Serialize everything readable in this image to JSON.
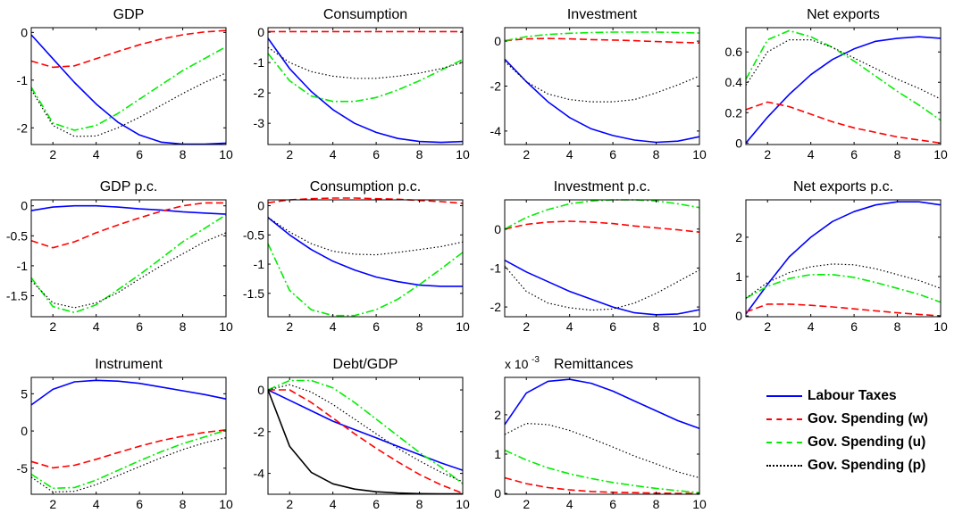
{
  "figure": {
    "series_styles": {
      "labour": {
        "color": "#0000ff",
        "dash": "",
        "width": 1.6
      },
      "govw": {
        "color": "#ff0000",
        "dash": "8,4",
        "width": 1.6
      },
      "govu": {
        "color": "#00ee00",
        "dash": "9,3,2,3",
        "width": 1.6
      },
      "govp": {
        "color": "#000000",
        "dash": "1.5,2.5",
        "width": 1.2
      },
      "black": {
        "color": "#000000",
        "dash": "",
        "width": 1.6
      }
    }
  },
  "legend": {
    "entries": [
      {
        "key": "labour",
        "label": "Labour Taxes"
      },
      {
        "key": "govw",
        "label": "Gov. Spending (w)"
      },
      {
        "key": "govu",
        "label": "Gov. Spending (u)"
      },
      {
        "key": "govp",
        "label": "Gov. Spending (p)"
      }
    ]
  },
  "chart_data": [
    {
      "type": "line",
      "title": "GDP",
      "x": [
        1,
        2,
        3,
        4,
        5,
        6,
        7,
        8,
        9,
        10
      ],
      "xlim": [
        1,
        10
      ],
      "ylim": [
        -2.35,
        0.1
      ],
      "yticks": [
        0,
        -1,
        -2
      ],
      "xticks": [
        2,
        4,
        6,
        8,
        10
      ],
      "series": [
        {
          "key": "labour",
          "values": [
            -0.05,
            -0.55,
            -1.05,
            -1.5,
            -1.88,
            -2.15,
            -2.3,
            -2.34,
            -2.34,
            -2.32
          ]
        },
        {
          "key": "govw",
          "values": [
            -0.6,
            -0.73,
            -0.7,
            -0.55,
            -0.4,
            -0.26,
            -0.14,
            -0.05,
            0.01,
            0.04
          ]
        },
        {
          "key": "govu",
          "values": [
            -1.15,
            -1.9,
            -2.05,
            -1.95,
            -1.7,
            -1.4,
            -1.1,
            -0.8,
            -0.55,
            -0.3
          ]
        },
        {
          "key": "govp",
          "values": [
            -1.2,
            -1.95,
            -2.18,
            -2.17,
            -2.0,
            -1.78,
            -1.53,
            -1.28,
            -1.05,
            -0.85
          ]
        }
      ]
    },
    {
      "type": "line",
      "title": "Consumption",
      "x": [
        1,
        2,
        3,
        4,
        5,
        6,
        7,
        8,
        9,
        10
      ],
      "xlim": [
        1,
        10
      ],
      "ylim": [
        -3.7,
        0.15
      ],
      "yticks": [
        0,
        -1,
        -2,
        -3
      ],
      "xticks": [
        2,
        4,
        6,
        8,
        10
      ],
      "series": [
        {
          "key": "labour",
          "values": [
            -0.2,
            -1.2,
            -1.95,
            -2.55,
            -3.0,
            -3.3,
            -3.5,
            -3.6,
            -3.63,
            -3.6
          ]
        },
        {
          "key": "govw",
          "values": [
            0.02,
            0.02,
            0.02,
            0.02,
            0.02,
            0.02,
            0.02,
            0.02,
            0.02,
            0.02
          ]
        },
        {
          "key": "govu",
          "values": [
            -0.7,
            -1.6,
            -2.1,
            -2.28,
            -2.28,
            -2.15,
            -1.9,
            -1.6,
            -1.25,
            -0.9
          ]
        },
        {
          "key": "govp",
          "values": [
            -0.5,
            -1.0,
            -1.3,
            -1.45,
            -1.52,
            -1.52,
            -1.45,
            -1.35,
            -1.2,
            -1.0
          ]
        }
      ]
    },
    {
      "type": "line",
      "title": "Investment",
      "x": [
        1,
        2,
        3,
        4,
        5,
        6,
        7,
        8,
        9,
        10
      ],
      "xlim": [
        1,
        10
      ],
      "ylim": [
        -4.6,
        0.6
      ],
      "yticks": [
        0,
        -2,
        -4
      ],
      "xticks": [
        2,
        4,
        6,
        8,
        10
      ],
      "series": [
        {
          "key": "labour",
          "values": [
            -0.8,
            -1.8,
            -2.7,
            -3.4,
            -3.9,
            -4.2,
            -4.4,
            -4.5,
            -4.45,
            -4.25
          ]
        },
        {
          "key": "govw",
          "values": [
            0.02,
            0.1,
            0.12,
            0.1,
            0.07,
            0.05,
            0.02,
            -0.02,
            -0.05,
            -0.08
          ]
        },
        {
          "key": "govu",
          "values": [
            0.02,
            0.2,
            0.3,
            0.35,
            0.38,
            0.4,
            0.4,
            0.4,
            0.38,
            0.36
          ]
        },
        {
          "key": "govp",
          "values": [
            -0.9,
            -1.8,
            -2.35,
            -2.6,
            -2.7,
            -2.7,
            -2.6,
            -2.3,
            -1.95,
            -1.55
          ]
        }
      ]
    },
    {
      "type": "line",
      "title": "Net exports",
      "x": [
        1,
        2,
        3,
        4,
        5,
        6,
        7,
        8,
        9,
        10
      ],
      "xlim": [
        1,
        10
      ],
      "ylim": [
        -0.01,
        0.76
      ],
      "yticks": [
        0,
        0.2,
        0.4,
        0.6
      ],
      "xticks": [
        2,
        4,
        6,
        8,
        10
      ],
      "series": [
        {
          "key": "labour",
          "values": [
            0.0,
            0.17,
            0.32,
            0.45,
            0.55,
            0.62,
            0.67,
            0.69,
            0.7,
            0.69
          ]
        },
        {
          "key": "govw",
          "values": [
            0.22,
            0.27,
            0.24,
            0.19,
            0.14,
            0.1,
            0.07,
            0.04,
            0.02,
            0.0
          ]
        },
        {
          "key": "govu",
          "values": [
            0.42,
            0.68,
            0.74,
            0.7,
            0.63,
            0.54,
            0.44,
            0.34,
            0.25,
            0.15
          ]
        },
        {
          "key": "govp",
          "values": [
            0.38,
            0.6,
            0.68,
            0.68,
            0.63,
            0.56,
            0.49,
            0.42,
            0.36,
            0.29
          ]
        }
      ]
    },
    {
      "type": "line",
      "title": "GDP p.c.",
      "x": [
        1,
        2,
        3,
        4,
        5,
        6,
        7,
        8,
        9,
        10
      ],
      "xlim": [
        1,
        10
      ],
      "ylim": [
        -1.85,
        0.1
      ],
      "yticks": [
        0,
        -0.5,
        -1,
        -1.5
      ],
      "xticks": [
        2,
        4,
        6,
        8,
        10
      ],
      "series": [
        {
          "key": "labour",
          "values": [
            -0.08,
            -0.02,
            0.0,
            0.0,
            -0.02,
            -0.05,
            -0.07,
            -0.1,
            -0.12,
            -0.14
          ]
        },
        {
          "key": "govw",
          "values": [
            -0.58,
            -0.7,
            -0.6,
            -0.45,
            -0.32,
            -0.2,
            -0.09,
            0.0,
            0.05,
            0.05
          ]
        },
        {
          "key": "govu",
          "values": [
            -1.2,
            -1.68,
            -1.78,
            -1.65,
            -1.4,
            -1.15,
            -0.88,
            -0.6,
            -0.38,
            -0.15
          ]
        },
        {
          "key": "govp",
          "values": [
            -1.25,
            -1.62,
            -1.7,
            -1.62,
            -1.45,
            -1.22,
            -1.0,
            -0.8,
            -0.6,
            -0.45
          ]
        }
      ]
    },
    {
      "type": "line",
      "title": "Consumption p.c.",
      "x": [
        1,
        2,
        3,
        4,
        5,
        6,
        7,
        8,
        9,
        10
      ],
      "xlim": [
        1,
        10
      ],
      "ylim": [
        -1.9,
        0.1
      ],
      "yticks": [
        0,
        -0.5,
        -1,
        -1.5
      ],
      "xticks": [
        2,
        4,
        6,
        8,
        10
      ],
      "series": [
        {
          "key": "labour",
          "values": [
            -0.2,
            -0.5,
            -0.75,
            -0.95,
            -1.1,
            -1.22,
            -1.3,
            -1.36,
            -1.38,
            -1.38
          ]
        },
        {
          "key": "govw",
          "values": [
            0.05,
            0.1,
            0.12,
            0.13,
            0.13,
            0.12,
            0.11,
            0.09,
            0.07,
            0.04
          ]
        },
        {
          "key": "govu",
          "values": [
            -0.65,
            -1.45,
            -1.78,
            -1.88,
            -1.88,
            -1.78,
            -1.6,
            -1.35,
            -1.08,
            -0.8
          ]
        },
        {
          "key": "govp",
          "values": [
            -0.2,
            -0.45,
            -0.65,
            -0.78,
            -0.83,
            -0.84,
            -0.8,
            -0.75,
            -0.7,
            -0.62
          ]
        }
      ]
    },
    {
      "type": "line",
      "title": "Investment p.c.",
      "x": [
        1,
        2,
        3,
        4,
        5,
        6,
        7,
        8,
        9,
        10
      ],
      "xlim": [
        1,
        10
      ],
      "ylim": [
        -2.25,
        0.75
      ],
      "yticks": [
        0,
        -1,
        -2
      ],
      "xticks": [
        2,
        4,
        6,
        8,
        10
      ],
      "series": [
        {
          "key": "labour",
          "values": [
            -0.8,
            -1.1,
            -1.35,
            -1.6,
            -1.8,
            -2.0,
            -2.15,
            -2.2,
            -2.18,
            -2.07
          ]
        },
        {
          "key": "govw",
          "values": [
            0.0,
            0.12,
            0.18,
            0.2,
            0.18,
            0.14,
            0.08,
            0.03,
            -0.02,
            -0.08
          ]
        },
        {
          "key": "govu",
          "values": [
            0.0,
            0.3,
            0.5,
            0.65,
            0.72,
            0.75,
            0.75,
            0.72,
            0.65,
            0.55
          ]
        },
        {
          "key": "govp",
          "values": [
            -0.95,
            -1.6,
            -1.9,
            -2.02,
            -2.08,
            -2.05,
            -1.9,
            -1.65,
            -1.35,
            -1.05
          ]
        }
      ]
    },
    {
      "type": "line",
      "title": "Net exports p.c.",
      "x": [
        1,
        2,
        3,
        4,
        5,
        6,
        7,
        8,
        9,
        10
      ],
      "xlim": [
        1,
        10
      ],
      "ylim": [
        -0.02,
        2.95
      ],
      "yticks": [
        0,
        1,
        2
      ],
      "xticks": [
        2,
        4,
        6,
        8,
        10
      ],
      "series": [
        {
          "key": "labour",
          "values": [
            0.05,
            0.8,
            1.5,
            2.0,
            2.4,
            2.65,
            2.82,
            2.9,
            2.9,
            2.82
          ]
        },
        {
          "key": "govw",
          "values": [
            0.1,
            0.3,
            0.3,
            0.27,
            0.23,
            0.18,
            0.13,
            0.08,
            0.04,
            0.0
          ]
        },
        {
          "key": "govu",
          "values": [
            0.45,
            0.75,
            0.95,
            1.05,
            1.05,
            0.98,
            0.85,
            0.7,
            0.55,
            0.35
          ]
        },
        {
          "key": "govp",
          "values": [
            0.45,
            0.85,
            1.1,
            1.25,
            1.32,
            1.3,
            1.2,
            1.05,
            0.9,
            0.7
          ]
        }
      ]
    },
    {
      "type": "line",
      "title": "Instrument",
      "x": [
        1,
        2,
        3,
        4,
        5,
        6,
        7,
        8,
        9,
        10
      ],
      "xlim": [
        1,
        10
      ],
      "ylim": [
        -8.5,
        7.2
      ],
      "yticks": [
        5,
        0,
        -5
      ],
      "xticks": [
        2,
        4,
        6,
        8,
        10
      ],
      "series": [
        {
          "key": "labour",
          "values": [
            3.5,
            5.6,
            6.6,
            6.8,
            6.7,
            6.4,
            5.9,
            5.4,
            4.9,
            4.3
          ]
        },
        {
          "key": "govw",
          "values": [
            -4.1,
            -4.95,
            -4.6,
            -3.8,
            -2.9,
            -2.05,
            -1.3,
            -0.7,
            -0.2,
            0.15
          ]
        },
        {
          "key": "govu",
          "values": [
            -5.8,
            -7.7,
            -7.6,
            -6.6,
            -5.3,
            -4.0,
            -2.8,
            -1.7,
            -0.8,
            0.1
          ]
        },
        {
          "key": "govp",
          "values": [
            -6.2,
            -8.2,
            -8.1,
            -7.2,
            -6.0,
            -4.8,
            -3.6,
            -2.5,
            -1.6,
            -0.9
          ]
        }
      ]
    },
    {
      "type": "line",
      "title": "Debt/GDP",
      "x": [
        1,
        2,
        3,
        4,
        5,
        6,
        7,
        8,
        9,
        10
      ],
      "xlim": [
        1,
        10
      ],
      "ylim": [
        -5.0,
        0.6
      ],
      "yticks": [
        0,
        -2,
        -4
      ],
      "xticks": [
        2,
        4,
        6,
        8,
        10
      ],
      "series": [
        {
          "key": "labour",
          "values": [
            0.0,
            -0.5,
            -1.0,
            -1.5,
            -1.9,
            -2.3,
            -2.7,
            -3.1,
            -3.5,
            -3.85
          ]
        },
        {
          "key": "govw",
          "values": [
            0.0,
            0.0,
            -0.6,
            -1.35,
            -2.1,
            -2.8,
            -3.45,
            -4.05,
            -4.55,
            -4.95
          ]
        },
        {
          "key": "govu",
          "values": [
            0.0,
            0.45,
            0.45,
            0.1,
            -0.6,
            -1.4,
            -2.2,
            -3.0,
            -3.7,
            -4.5
          ]
        },
        {
          "key": "govp",
          "values": [
            0.0,
            0.25,
            -0.1,
            -0.7,
            -1.4,
            -2.1,
            -2.8,
            -3.4,
            -3.95,
            -4.4
          ]
        },
        {
          "key": "black",
          "values": [
            0.0,
            -2.7,
            -3.95,
            -4.5,
            -4.75,
            -4.88,
            -4.94,
            -4.97,
            -4.98,
            -4.98
          ]
        }
      ]
    },
    {
      "type": "line",
      "title": "Remittances",
      "exponent_label": "x 10",
      "exponent": "-3",
      "x": [
        1,
        2,
        3,
        4,
        5,
        6,
        7,
        8,
        9,
        10
      ],
      "xlim": [
        1,
        10
      ],
      "ylim": [
        -0.02,
        2.95
      ],
      "yticks": [
        0,
        1,
        2
      ],
      "xticks": [
        2,
        4,
        6,
        8,
        10
      ],
      "series": [
        {
          "key": "labour",
          "values": [
            1.75,
            2.55,
            2.85,
            2.9,
            2.8,
            2.6,
            2.35,
            2.1,
            1.85,
            1.65
          ]
        },
        {
          "key": "govw",
          "values": [
            0.4,
            0.25,
            0.15,
            0.09,
            0.05,
            0.03,
            0.02,
            0.01,
            0.0,
            0.0
          ]
        },
        {
          "key": "govu",
          "values": [
            1.1,
            0.85,
            0.65,
            0.5,
            0.38,
            0.28,
            0.2,
            0.13,
            0.07,
            0.02
          ]
        },
        {
          "key": "govp",
          "values": [
            1.5,
            1.78,
            1.75,
            1.6,
            1.4,
            1.18,
            0.95,
            0.75,
            0.55,
            0.4
          ]
        }
      ]
    }
  ]
}
